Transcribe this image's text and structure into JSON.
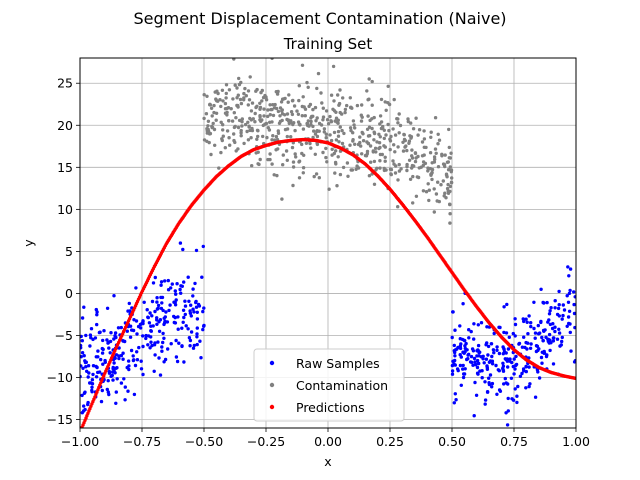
{
  "chart_data": {
    "type": "scatter",
    "suptitle": "Segment Displacement Contamination (Naive)",
    "title": "Training Set",
    "xlabel": "x",
    "ylabel": "y",
    "xlim": [
      -1.0,
      1.0
    ],
    "ylim": [
      -16,
      28
    ],
    "grid": true,
    "xticks": [
      -1.0,
      -0.75,
      -0.5,
      -0.25,
      0.0,
      0.25,
      0.5,
      0.75,
      1.0
    ],
    "xtick_labels": [
      "−1.00",
      "−0.75",
      "−0.50",
      "−0.25",
      "0.00",
      "0.25",
      "0.50",
      "0.75",
      "1.00"
    ],
    "yticks": [
      -15,
      -10,
      -5,
      0,
      5,
      10,
      15,
      20,
      25
    ],
    "ytick_labels": [
      "−15",
      "−10",
      "−5",
      "0",
      "5",
      "10",
      "15",
      "20",
      "25"
    ],
    "legend": {
      "position": "lower-center",
      "entries": [
        {
          "label": "Raw Samples",
          "color": "#0000ff"
        },
        {
          "label": "Contamination",
          "color": "#808080"
        },
        {
          "label": "Predictions",
          "color": "#ff0000"
        }
      ]
    },
    "series": [
      {
        "name": "Raw Samples",
        "color": "#0000ff",
        "segments": [
          {
            "x_range": [
              -1.0,
              -0.5
            ],
            "y_center_trend": [
              [
                -1.0,
                -9.5
              ],
              [
                -0.75,
                -5.0
              ],
              [
                -0.5,
                -1.0
              ]
            ],
            "spread": 3.0,
            "count": 330
          },
          {
            "x_range": [
              0.5,
              1.0
            ],
            "y_center_trend": [
              [
                0.5,
                -7.0
              ],
              [
                0.75,
                -8.5
              ],
              [
                1.0,
                -2.0
              ]
            ],
            "spread": 2.6,
            "count": 330
          }
        ]
      },
      {
        "name": "Contamination",
        "color": "#808080",
        "segments": [
          {
            "x_range": [
              -0.5,
              0.5
            ],
            "y_center_trend": [
              [
                -0.5,
                21.0
              ],
              [
                -0.25,
                20.5
              ],
              [
                0.0,
                19.5
              ],
              [
                0.25,
                17.5
              ],
              [
                0.5,
                14.5
              ]
            ],
            "spread": 2.8,
            "count": 660
          }
        ]
      },
      {
        "name": "Predictions",
        "color": "#ff0000",
        "x": [
          -1.0,
          -0.95,
          -0.9,
          -0.85,
          -0.8,
          -0.75,
          -0.7,
          -0.65,
          -0.6,
          -0.55,
          -0.5,
          -0.45,
          -0.4,
          -0.35,
          -0.3,
          -0.25,
          -0.2,
          -0.15,
          -0.1,
          -0.05,
          0.0,
          0.05,
          0.1,
          0.15,
          0.2,
          0.25,
          0.3,
          0.35,
          0.4,
          0.45,
          0.5,
          0.55,
          0.6,
          0.65,
          0.7,
          0.75,
          0.8,
          0.85,
          0.9,
          0.95,
          1.0
        ],
        "y": [
          -16.5,
          -13.0,
          -9.5,
          -6.2,
          -3.0,
          0.2,
          3.2,
          6.0,
          8.4,
          10.5,
          12.3,
          13.9,
          15.2,
          16.3,
          17.1,
          17.6,
          18.0,
          18.2,
          18.3,
          18.2,
          17.9,
          17.3,
          16.5,
          15.4,
          14.0,
          12.4,
          10.6,
          8.7,
          6.7,
          4.6,
          2.5,
          0.4,
          -1.6,
          -3.5,
          -5.2,
          -6.7,
          -7.9,
          -8.8,
          -9.4,
          -9.8,
          -10.1
        ]
      }
    ]
  }
}
